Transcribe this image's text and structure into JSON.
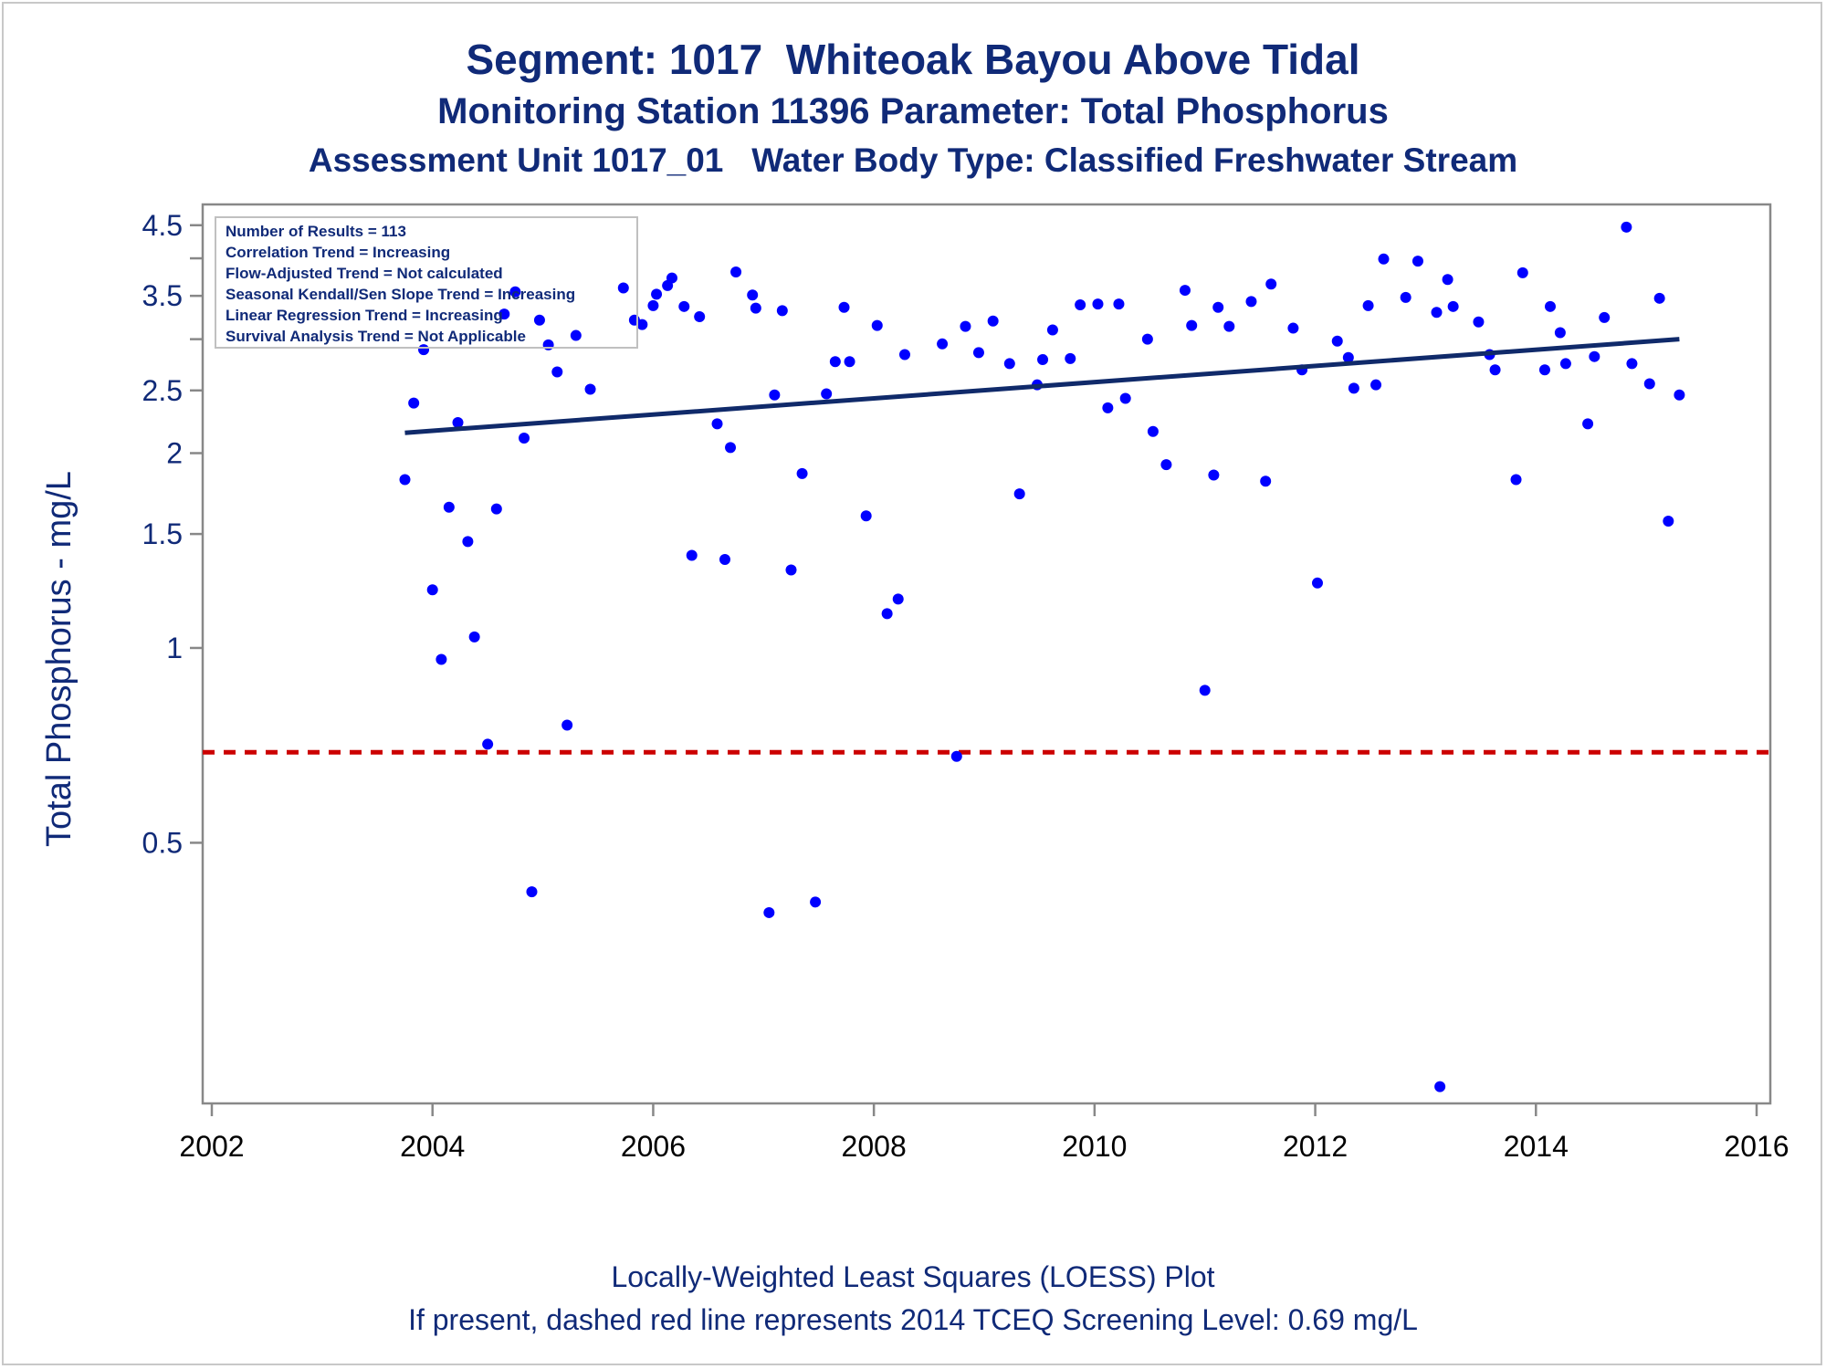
{
  "chart_data": {
    "type": "scatter",
    "title": "Segment: 1017  Whiteoak Bayou Above Tidal",
    "subtitle": "Monitoring Station 11396 Parameter: Total Phosphorus",
    "subtitle2": "Assessment Unit 1017_01   Water Body Type: Classified Freshwater Stream",
    "xlabel": "",
    "ylabel": "Total Phosphorus - mg/L",
    "yscale": "log",
    "xlim": [
      2002,
      2016
    ],
    "ylim": [
      0.205,
      4.6
    ],
    "x_ticks": [
      "2002",
      "2004",
      "2006",
      "2008",
      "2010",
      "2012",
      "2014",
      "2016"
    ],
    "y_ticks": [
      "0.5",
      "1",
      "1.5",
      "2",
      "2.5",
      "3.5",
      "4.5"
    ],
    "y_minor_ticks": [
      3,
      4
    ],
    "grid": false,
    "stats_box": {
      "position": "top-left",
      "lines": [
        "Number of Results = 113",
        "Correlation Trend = Increasing",
        "Flow-Adjusted Trend = Not calculated",
        "Seasonal Kendall/Sen Slope Trend = Increasing",
        "Linear Regression Trend = Increasing",
        "Survival Analysis Trend = Not Applicable"
      ]
    },
    "screening_level": {
      "value": 0.69,
      "color": "#cc0000",
      "style": "dashed"
    },
    "trend_line": {
      "x": [
        2003.75,
        2015.3
      ],
      "y": [
        2.15,
        3.0
      ],
      "color": "#102a6a"
    },
    "series": [
      {
        "color": "#0000ff",
        "points": [
          [
            2003.75,
            1.82
          ],
          [
            2003.83,
            2.39
          ],
          [
            2003.92,
            2.89
          ],
          [
            2004.0,
            1.23
          ],
          [
            2004.08,
            0.96
          ],
          [
            2004.15,
            1.65
          ],
          [
            2004.23,
            2.23
          ],
          [
            2004.32,
            1.46
          ],
          [
            2004.38,
            1.04
          ],
          [
            2004.5,
            0.71
          ],
          [
            2004.58,
            1.64
          ],
          [
            2004.65,
            3.28
          ],
          [
            2004.75,
            3.55
          ],
          [
            2004.83,
            2.11
          ],
          [
            2004.9,
            0.42
          ],
          [
            2004.97,
            3.21
          ],
          [
            2005.05,
            2.94
          ],
          [
            2005.13,
            2.67
          ],
          [
            2005.22,
            0.76
          ],
          [
            2005.3,
            3.04
          ],
          [
            2005.43,
            2.51
          ],
          [
            2005.73,
            3.6
          ],
          [
            2005.83,
            3.21
          ],
          [
            2005.9,
            3.16
          ],
          [
            2006.0,
            3.38
          ],
          [
            2006.03,
            3.52
          ],
          [
            2006.13,
            3.63
          ],
          [
            2006.17,
            3.73
          ],
          [
            2006.28,
            3.37
          ],
          [
            2006.35,
            1.39
          ],
          [
            2006.42,
            3.25
          ],
          [
            2006.58,
            2.22
          ],
          [
            2006.65,
            1.37
          ],
          [
            2006.7,
            2.04
          ],
          [
            2006.75,
            3.81
          ],
          [
            2006.9,
            3.51
          ],
          [
            2006.93,
            3.35
          ],
          [
            2007.05,
            0.39
          ],
          [
            2007.1,
            2.46
          ],
          [
            2007.17,
            3.32
          ],
          [
            2007.25,
            1.32
          ],
          [
            2007.35,
            1.86
          ],
          [
            2007.47,
            0.405
          ],
          [
            2007.57,
            2.47
          ],
          [
            2007.65,
            2.77
          ],
          [
            2007.73,
            3.36
          ],
          [
            2007.78,
            2.77
          ],
          [
            2007.93,
            1.6
          ],
          [
            2008.03,
            3.15
          ],
          [
            2008.12,
            1.13
          ],
          [
            2008.22,
            1.19
          ],
          [
            2008.28,
            2.84
          ],
          [
            2008.62,
            2.95
          ],
          [
            2008.75,
            0.68
          ],
          [
            2008.83,
            3.14
          ],
          [
            2008.95,
            2.86
          ],
          [
            2009.08,
            3.2
          ],
          [
            2009.23,
            2.75
          ],
          [
            2009.32,
            1.73
          ],
          [
            2009.48,
            2.55
          ],
          [
            2009.53,
            2.79
          ],
          [
            2009.62,
            3.1
          ],
          [
            2009.78,
            2.8
          ],
          [
            2009.87,
            3.39
          ],
          [
            2010.03,
            3.4
          ],
          [
            2010.12,
            2.35
          ],
          [
            2010.22,
            3.4
          ],
          [
            2010.28,
            2.43
          ],
          [
            2010.48,
            3.0
          ],
          [
            2010.53,
            2.16
          ],
          [
            2010.65,
            1.92
          ],
          [
            2010.82,
            3.57
          ],
          [
            2010.88,
            3.15
          ],
          [
            2011.0,
            0.86
          ],
          [
            2011.08,
            1.85
          ],
          [
            2011.12,
            3.36
          ],
          [
            2011.22,
            3.14
          ],
          [
            2011.42,
            3.43
          ],
          [
            2011.55,
            1.81
          ],
          [
            2011.6,
            3.65
          ],
          [
            2011.8,
            3.12
          ],
          [
            2011.88,
            2.69
          ],
          [
            2012.02,
            1.26
          ],
          [
            2012.2,
            2.98
          ],
          [
            2012.3,
            2.81
          ],
          [
            2012.35,
            2.52
          ],
          [
            2012.48,
            3.38
          ],
          [
            2012.55,
            2.55
          ],
          [
            2012.62,
            3.99
          ],
          [
            2012.82,
            3.48
          ],
          [
            2012.93,
            3.96
          ],
          [
            2013.1,
            3.3
          ],
          [
            2013.13,
            0.21
          ],
          [
            2013.2,
            3.71
          ],
          [
            2013.25,
            3.37
          ],
          [
            2013.48,
            3.19
          ],
          [
            2013.58,
            2.84
          ],
          [
            2013.63,
            2.69
          ],
          [
            2013.82,
            1.82
          ],
          [
            2013.88,
            3.8
          ],
          [
            2014.08,
            2.69
          ],
          [
            2014.13,
            3.37
          ],
          [
            2014.22,
            3.07
          ],
          [
            2014.27,
            2.75
          ],
          [
            2014.47,
            2.22
          ],
          [
            2014.53,
            2.82
          ],
          [
            2014.62,
            3.24
          ],
          [
            2014.82,
            4.47
          ],
          [
            2014.87,
            2.75
          ],
          [
            2015.03,
            2.56
          ],
          [
            2015.12,
            3.47
          ],
          [
            2015.2,
            1.57
          ],
          [
            2015.3,
            2.46
          ]
        ]
      }
    ]
  },
  "footnotes": {
    "line1": "Locally-Weighted Least Squares (LOESS) Plot",
    "line2": "If present, dashed red line represents 2014 TCEQ Screening Level: 0.69 mg/L"
  }
}
